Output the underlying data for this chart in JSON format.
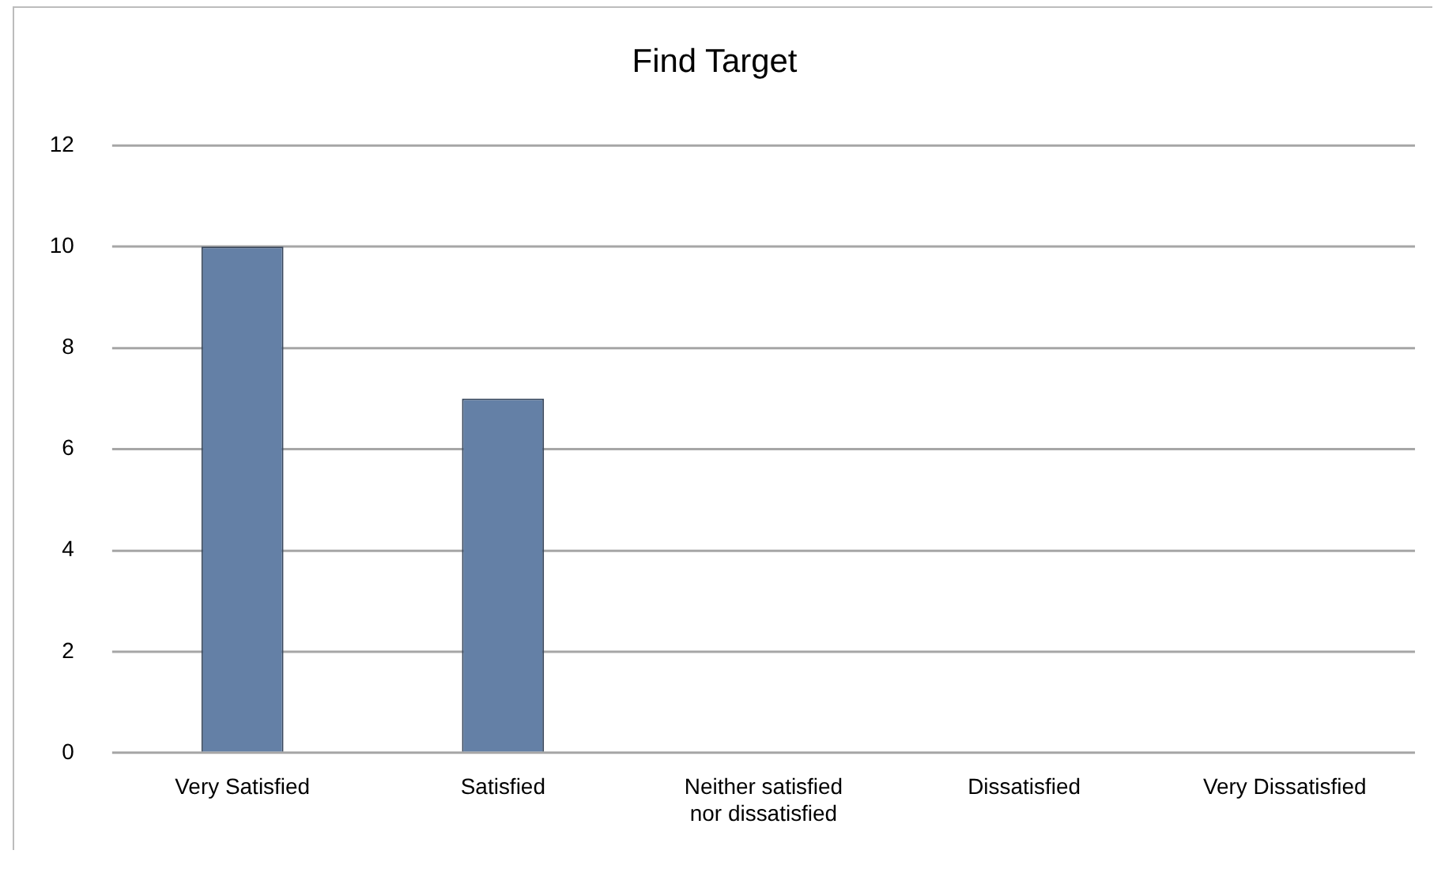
{
  "chart_data": {
    "type": "bar",
    "title": "Find Target",
    "categories": [
      "Very Satisfied",
      "Satisfied",
      "Neither satisfied nor dissatisfied",
      "Dissatisfied",
      "Very Dissatisfied"
    ],
    "values": [
      10,
      7,
      0,
      0,
      0
    ],
    "color": "#6480a6",
    "ylim": [
      0,
      12
    ],
    "yticks": [
      0,
      2,
      4,
      6,
      8,
      10,
      12
    ],
    "grid": "y",
    "legend": false
  }
}
